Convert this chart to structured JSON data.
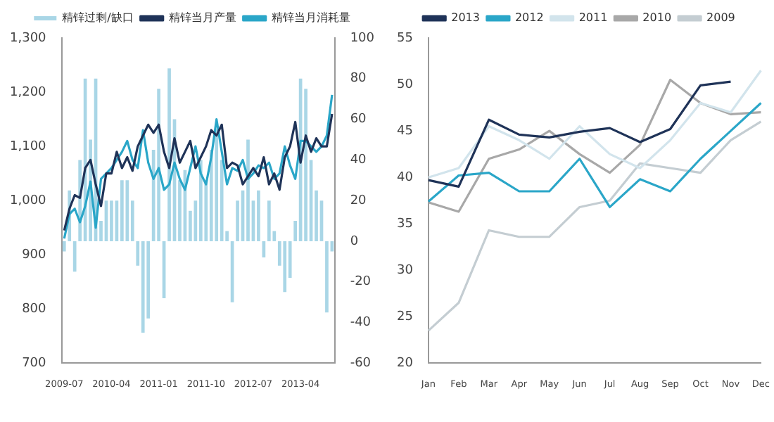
{
  "chart_data": [
    {
      "type": "bar",
      "legend": "top",
      "grid": false,
      "marker": "none",
      "categories": [
        "2009-07",
        null,
        null,
        null,
        null,
        null,
        null,
        null,
        null,
        "2010-04",
        null,
        null,
        null,
        null,
        null,
        null,
        null,
        null,
        "2011-01",
        null,
        null,
        null,
        null,
        null,
        null,
        null,
        null,
        "2011-10",
        null,
        null,
        null,
        null,
        null,
        null,
        null,
        null,
        "2012-07",
        null,
        null,
        null,
        null,
        null,
        null,
        null,
        null,
        "2013-04",
        null,
        null,
        null,
        null,
        null,
        null
      ],
      "ylim": [
        700,
        1300
      ],
      "yticks": [
        {
          "value": 700,
          "label": "700"
        },
        {
          "value": 800,
          "label": "800"
        },
        {
          "value": 900,
          "label": "900"
        },
        {
          "value": 1000,
          "label": "1,000"
        },
        {
          "value": 1100,
          "label": "1,100"
        },
        {
          "value": 1200,
          "label": "1,200"
        },
        {
          "value": 1300,
          "label": "1,300"
        }
      ],
      "y2lim": [
        -60,
        100
      ],
      "y2ticks": [
        -60,
        -40,
        -20,
        0,
        20,
        40,
        60,
        80,
        100
      ],
      "series": [
        {
          "name": "精锌过剩/缺口",
          "type": "bar",
          "axis": "y2",
          "color": "#a9d6e6",
          "values": [
            -5,
            25,
            -15,
            40,
            80,
            50,
            80,
            10,
            20,
            20,
            20,
            30,
            30,
            20,
            -12,
            -45,
            -38,
            45,
            75,
            -28,
            85,
            60,
            30,
            35,
            15,
            20,
            40,
            30,
            45,
            55,
            40,
            5,
            -30,
            20,
            25,
            50,
            20,
            25,
            -8,
            20,
            5,
            -12,
            -25,
            -18,
            10,
            80,
            75,
            40,
            25,
            20,
            -35,
            -5
          ]
        },
        {
          "name": "精锌当月产量",
          "type": "line",
          "axis": "y",
          "color": "#1f3358",
          "values": [
            945,
            985,
            1010,
            1005,
            1060,
            1075,
            1030,
            990,
            1050,
            1050,
            1090,
            1060,
            1080,
            1055,
            1100,
            1120,
            1140,
            1125,
            1140,
            1090,
            1060,
            1115,
            1070,
            1090,
            1110,
            1060,
            1080,
            1100,
            1130,
            1120,
            1140,
            1060,
            1070,
            1065,
            1030,
            1045,
            1060,
            1045,
            1080,
            1030,
            1050,
            1020,
            1080,
            1100,
            1145,
            1070,
            1120,
            1090,
            1115,
            1100,
            1100,
            1160
          ]
        },
        {
          "name": "精锌当月消耗量",
          "type": "line",
          "axis": "y",
          "color": "#2aa6c8",
          "values": [
            930,
            975,
            985,
            960,
            990,
            1035,
            950,
            1040,
            1050,
            1060,
            1075,
            1090,
            1110,
            1075,
            1060,
            1130,
            1070,
            1040,
            1060,
            1020,
            1030,
            1070,
            1040,
            1020,
            1060,
            1100,
            1050,
            1030,
            1080,
            1150,
            1090,
            1030,
            1060,
            1055,
            1075,
            1040,
            1050,
            1065,
            1060,
            1070,
            1040,
            1050,
            1100,
            1065,
            1040,
            1110,
            1110,
            1100,
            1090,
            1100,
            1120,
            1195
          ]
        }
      ]
    },
    {
      "type": "line",
      "legend": "top",
      "grid": false,
      "marker": "none",
      "categories": [
        "Jan",
        "Feb",
        "Mar",
        "Apr",
        "May",
        "Jun",
        "Jul",
        "Aug",
        "Sep",
        "Oct",
        "Nov",
        "Dec"
      ],
      "ylim": [
        20,
        55
      ],
      "yticks": [
        20,
        25,
        30,
        35,
        40,
        45,
        50,
        55
      ],
      "series": [
        {
          "name": "2013",
          "color": "#1f3358",
          "values": [
            39.7,
            39,
            46.2,
            44.6,
            44.3,
            44.9,
            45.3,
            43.8,
            45.2,
            49.9,
            50.3,
            null
          ]
        },
        {
          "name": "2012",
          "color": "#2aa6c8",
          "values": [
            37.4,
            40.2,
            40.5,
            38.5,
            38.5,
            42,
            36.8,
            39.8,
            38.5,
            42,
            45,
            48
          ]
        },
        {
          "name": "2011",
          "color": "#d2e4ec",
          "values": [
            40,
            41,
            45.5,
            44,
            42,
            45.5,
            42.5,
            41,
            44,
            48,
            47,
            51.5
          ]
        },
        {
          "name": "2010",
          "color": "#a8a8a8",
          "values": [
            37.3,
            36.3,
            42,
            43,
            45,
            42.5,
            40.5,
            43.5,
            50.5,
            48,
            46.8,
            47
          ]
        },
        {
          "name": "2009",
          "color": "#c4cdd2",
          "values": [
            23.5,
            26.5,
            34.3,
            33.6,
            33.6,
            36.8,
            37.5,
            41.5,
            41,
            40.5,
            44,
            46
          ]
        }
      ]
    }
  ]
}
